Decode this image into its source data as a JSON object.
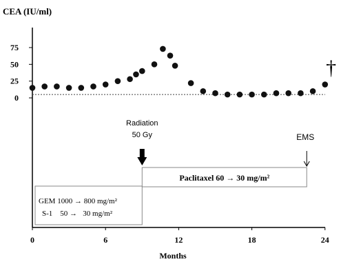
{
  "chart_data": {
    "type": "scatter",
    "ylabel": "CEA (IU/ml)",
    "xlabel": "Months",
    "xlim": [
      0,
      25
    ],
    "ylim": [
      0,
      75
    ],
    "x_ticks": [
      0,
      6,
      12,
      18,
      24
    ],
    "y_ticks": [
      0,
      25,
      50,
      75
    ],
    "x_tick_labels": [
      "0",
      "6",
      "12",
      "18",
      "24"
    ],
    "y_tick_labels": [
      "0",
      "25",
      "50",
      "75"
    ],
    "reference_line_y": 5,
    "grid": false,
    "series": [
      {
        "points": [
          [
            0,
            15
          ],
          [
            1,
            17
          ],
          [
            2,
            17
          ],
          [
            3,
            15
          ],
          [
            4,
            15
          ],
          [
            5,
            17
          ],
          [
            6,
            20
          ],
          [
            7,
            25
          ],
          [
            8,
            28
          ],
          [
            8.5,
            35
          ],
          [
            9,
            40
          ],
          [
            10,
            50
          ],
          [
            10.7,
            73
          ],
          [
            11.3,
            63
          ],
          [
            11.7,
            48
          ],
          [
            13,
            22
          ],
          [
            14,
            10
          ],
          [
            15,
            7
          ],
          [
            16,
            5
          ],
          [
            17,
            5
          ],
          [
            18,
            5
          ],
          [
            19,
            5
          ],
          [
            20,
            7
          ],
          [
            21,
            7
          ],
          [
            22,
            7
          ],
          [
            23,
            10
          ],
          [
            24,
            20
          ]
        ]
      }
    ],
    "annotations": {
      "radiation_line1": "Radiation",
      "radiation_line2": "50 Gy",
      "radiation_at_month": 9,
      "ems_label": "EMS",
      "ems_at_month": 22.5,
      "death_symbol": "†",
      "death_at_month": 24.5,
      "regimen1_line1": "GEM 1000 → 800 mg/m²",
      "regimen1_line2": "S-1    50 →   30 mg/m²",
      "regimen1_months": [
        0,
        9
      ],
      "regimen2_label": "Paclitaxel 60 → 30 mg/m²",
      "regimen2_months": [
        9,
        22.5
      ]
    }
  }
}
